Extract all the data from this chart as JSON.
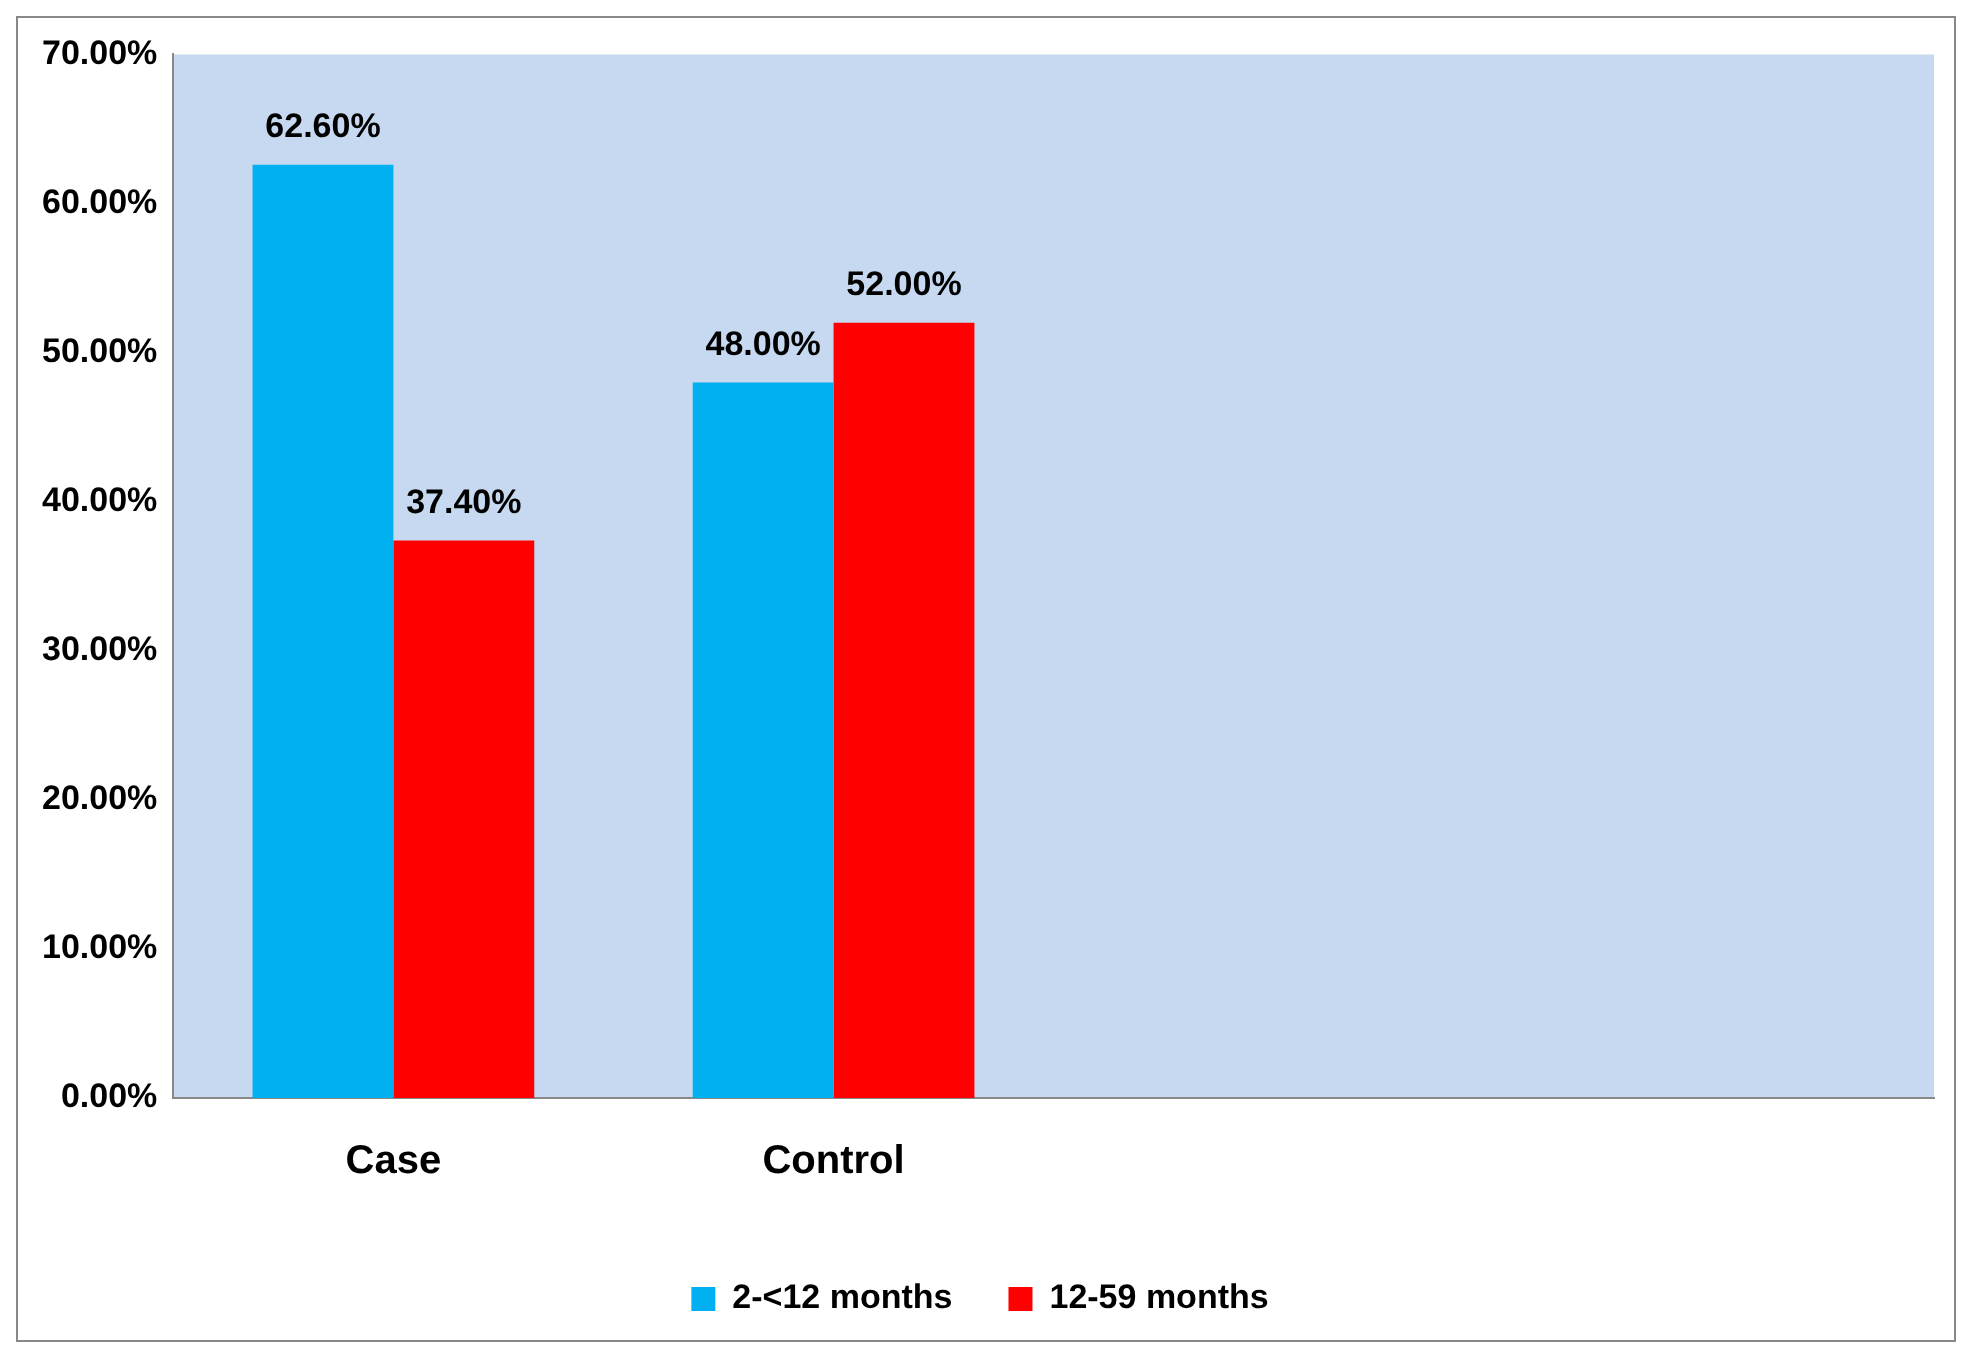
{
  "chart_data": {
    "type": "bar",
    "categories": [
      "Case",
      "Control",
      null,
      null
    ],
    "series": [
      {
        "name": "2-<12 months",
        "color": "#00b0f0",
        "values": [
          62.6,
          48.0,
          null,
          null
        ],
        "value_labels": [
          "62.60%",
          "48.00%",
          null,
          null
        ]
      },
      {
        "name": "12-59 months",
        "color": "#ff0000",
        "values": [
          37.4,
          52.0,
          null,
          null
        ],
        "value_labels": [
          "37.40%",
          "52.00%",
          null,
          null
        ]
      }
    ],
    "ylim": [
      0,
      70
    ],
    "yticks": [
      {
        "value": 0,
        "label": "0.00%"
      },
      {
        "value": 10,
        "label": "10.00%"
      },
      {
        "value": 20,
        "label": "20.00%"
      },
      {
        "value": 30,
        "label": "30.00%"
      },
      {
        "value": 40,
        "label": "40.00%"
      },
      {
        "value": 50,
        "label": "50.00%"
      },
      {
        "value": 60,
        "label": "60.00%"
      },
      {
        "value": 70,
        "label": "70.00%"
      }
    ],
    "grid": false,
    "legend": "bottom"
  }
}
